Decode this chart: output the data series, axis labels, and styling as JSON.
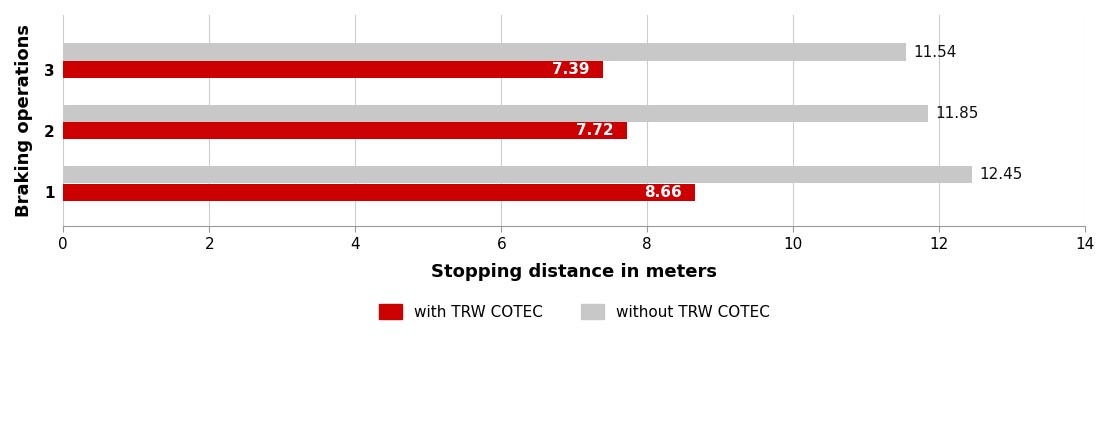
{
  "categories": [
    1,
    2,
    3
  ],
  "cotec_values": [
    8.66,
    7.72,
    7.39
  ],
  "conventional_values": [
    12.45,
    11.85,
    11.54
  ],
  "cotec_color": "#CC0000",
  "conventional_color": "#C8C8C8",
  "xlabel": "Stopping distance in meters",
  "ylabel": "Braking operations",
  "xlim": [
    0,
    14
  ],
  "xticks": [
    0,
    2,
    4,
    6,
    8,
    10,
    12,
    14
  ],
  "legend_cotec": "with TRW COTEC",
  "legend_conventional": "without TRW COTEC",
  "bar_height": 0.28,
  "bar_gap": 0.01,
  "label_fontsize": 11,
  "axis_label_fontsize": 13,
  "tick_fontsize": 11,
  "background_color": "#ffffff",
  "grid_color": "#cccccc"
}
